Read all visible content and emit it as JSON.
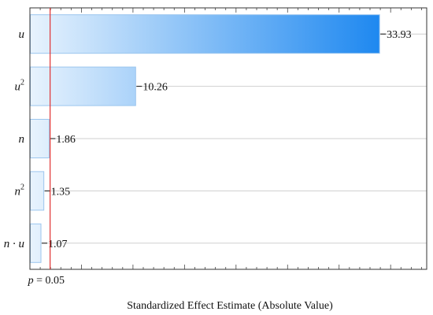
{
  "chart_data": {
    "type": "bar",
    "orientation": "horizontal",
    "categories": [
      {
        "base": "u",
        "sup": ""
      },
      {
        "base": "u",
        "sup": "2"
      },
      {
        "base": "n",
        "sup": ""
      },
      {
        "base": "n",
        "sup": "2"
      },
      {
        "base": "n · u",
        "sup": ""
      }
    ],
    "values": [
      33.93,
      10.26,
      1.86,
      1.35,
      1.07
    ],
    "value_labels": [
      "33.93",
      "10.26",
      "1.86",
      "1.35",
      "1.07"
    ],
    "xlabel": "Standardized Effect Estimate (Absolute Value)",
    "reference_line": {
      "value": 1.96,
      "label_italic": "p",
      "label_rest": " = 0.05",
      "color": "#e03030"
    },
    "xlim": [
      0,
      38.5
    ],
    "grid": true,
    "bar_gradient": [
      "#e8f3fd",
      "#1e88f0"
    ],
    "bar_border": "#9cc6ee"
  }
}
